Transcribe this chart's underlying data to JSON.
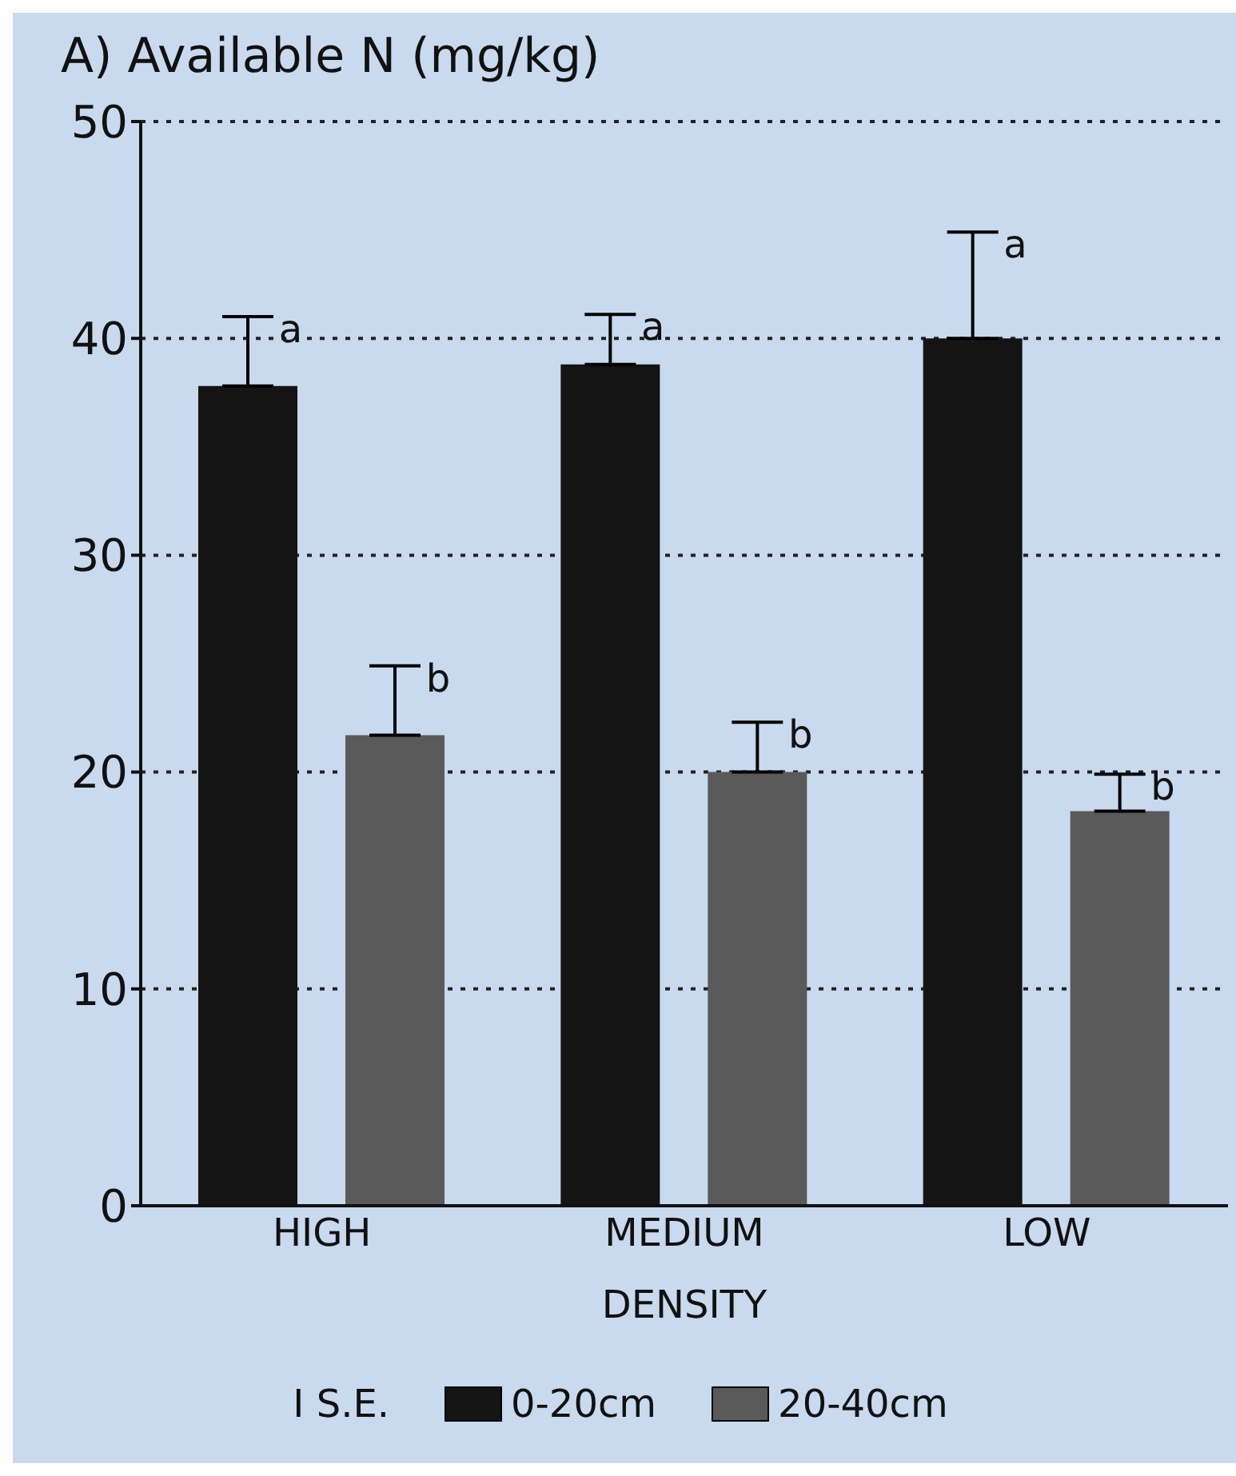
{
  "chart_data": {
    "type": "bar",
    "title": "A) Available N (mg/kg)",
    "xlabel": "DENSITY",
    "categories": [
      "HIGH",
      "MEDIUM",
      "LOW"
    ],
    "series": [
      {
        "name": "0-20cm",
        "color": "#141414",
        "values": [
          37.8,
          38.8,
          40.0
        ],
        "errors": [
          [
            37.8,
            41.0
          ],
          [
            38.8,
            41.1
          ],
          [
            40.0,
            44.9
          ]
        ]
      },
      {
        "name": "20-40cm",
        "color": "#5a5a5a",
        "values": [
          21.7,
          20.0,
          18.2
        ],
        "errors": [
          [
            21.7,
            24.9
          ],
          [
            20.0,
            22.3
          ],
          [
            18.2,
            19.9
          ]
        ]
      }
    ],
    "ylim": [
      0,
      50
    ],
    "yticks": [
      0,
      10,
      20,
      30,
      40,
      50
    ],
    "grid": "y",
    "legend": "bottom",
    "annotations": [
      "a",
      "b",
      "a",
      "b",
      "a",
      "b",
      "I S.E."
    ]
  }
}
